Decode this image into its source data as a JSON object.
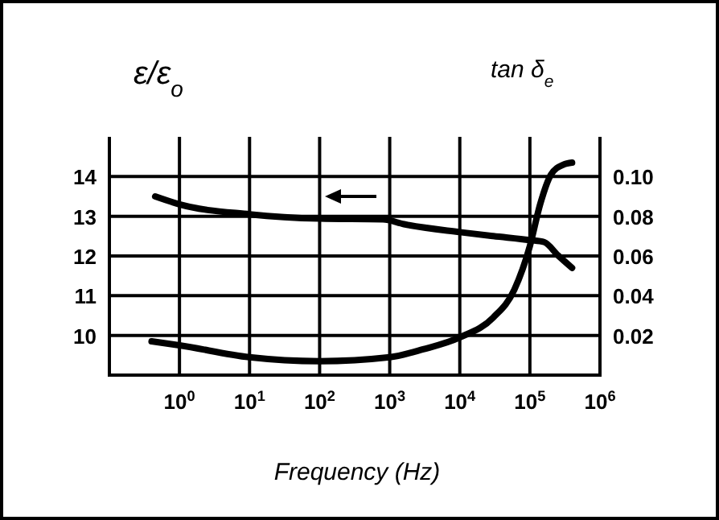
{
  "chart_data": {
    "type": "line",
    "xlabel": "Frequency (Hz)",
    "ylabel": "ε/ε$_{o}$",
    "y2label": "tan δ$_{e}$",
    "log": "x",
    "grid": true,
    "marker": "none",
    "line_style": "solid",
    "xlim": [
      0.1,
      1000000
    ],
    "xticks": [
      {
        "value": 1,
        "label": "10$^{0}$"
      },
      {
        "value": 10,
        "label": "10$^{1}$"
      },
      {
        "value": 100,
        "label": "10$^{2}$"
      },
      {
        "value": 1000,
        "label": "10$^{3}$"
      },
      {
        "value": 10000,
        "label": "10$^{4}$"
      },
      {
        "value": 100000,
        "label": "10$^{5}$"
      },
      {
        "value": 1000000,
        "label": "10$^{6}$"
      }
    ],
    "ylim": [
      9,
      15
    ],
    "yticks": [
      10,
      11,
      12,
      13,
      14
    ],
    "y2lim": [
      0,
      0.12
    ],
    "y2ticks": [
      {
        "value": 0.02,
        "label": "0.02"
      },
      {
        "value": 0.04,
        "label": "0.04"
      },
      {
        "value": 0.06,
        "label": "0.06"
      },
      {
        "value": 0.08,
        "label": "0.08"
      },
      {
        "value": 0.1,
        "label": "0.10"
      }
    ],
    "series": [
      {
        "color": "#000000",
        "x": [
          0.45,
          1,
          10,
          100,
          800,
          1600,
          10000,
          30000,
          100000,
          160000,
          250000,
          400000
        ],
        "values": [
          13.5,
          13.3,
          13.05,
          12.94,
          12.92,
          12.8,
          12.6,
          12.5,
          12.4,
          12.35,
          12.02,
          11.7
        ]
      },
      {
        "color": "#000000",
        "axis": "y2",
        "x": [
          0.4,
          1,
          10,
          100,
          1000,
          3000,
          10000,
          30000,
          60000,
          100000,
          140000,
          200000,
          300000,
          400000
        ],
        "values": [
          0.017,
          0.015,
          0.009,
          0.007,
          0.009,
          0.013,
          0.019,
          0.029,
          0.043,
          0.065,
          0.086,
          0.101,
          0.106,
          0.107
        ]
      }
    ]
  }
}
